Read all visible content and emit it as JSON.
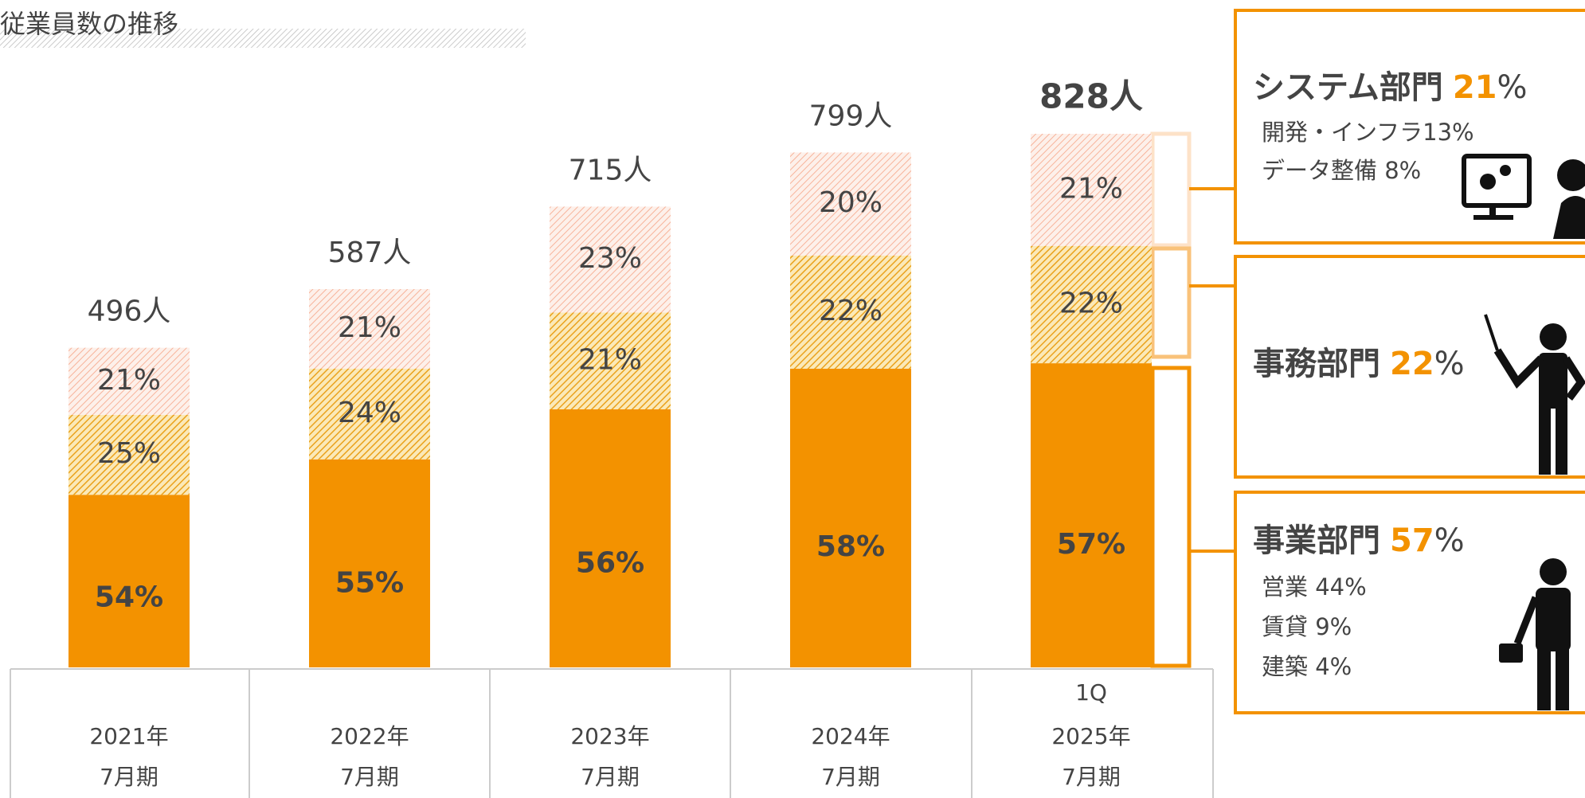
{
  "chart_data": {
    "type": "bar",
    "title": "従業員数の推移",
    "categories": [
      [
        "2021年",
        "7月期"
      ],
      [
        "2022年",
        "7月期"
      ],
      [
        "2023年",
        "7月期"
      ],
      [
        "2024年",
        "7月期"
      ],
      [
        "1Q",
        "2025年",
        "7月期"
      ]
    ],
    "totals": [
      496,
      587,
      715,
      799,
      828
    ],
    "total_labels": [
      "496人",
      "587人",
      "715人",
      "799人",
      "828人"
    ],
    "series": [
      {
        "name": "事業部門",
        "color": "#f39200",
        "values": [
          54,
          55,
          56,
          58,
          57
        ],
        "value_labels": [
          "54%",
          "55%",
          "56%",
          "58%",
          "57%"
        ]
      },
      {
        "name": "事務部門",
        "color": "#f0a81e",
        "values": [
          25,
          24,
          21,
          22,
          22
        ],
        "value_labels": [
          "25%",
          "24%",
          "21%",
          "22%",
          "22%"
        ]
      },
      {
        "name": "システム部門",
        "color": "#f7a38a",
        "values": [
          21,
          21,
          23,
          20,
          21
        ],
        "value_labels": [
          "21%",
          "21%",
          "23%",
          "20%",
          "21%"
        ]
      }
    ],
    "panels": [
      {
        "title": "システム部門",
        "pct": "21",
        "unit": "%",
        "lines": [
          "開発・インフラ13%",
          "データ整備 8%"
        ]
      },
      {
        "title": "事務部門",
        "pct": "22",
        "unit": "%",
        "lines": []
      },
      {
        "title": "事業部門",
        "pct": "57",
        "unit": "%",
        "lines": [
          "営業 44%",
          "賃貸 9%",
          "建築 4%"
        ]
      }
    ]
  }
}
